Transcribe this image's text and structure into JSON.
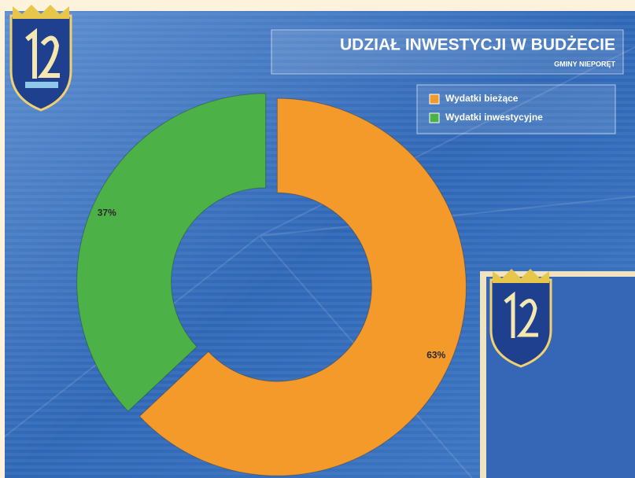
{
  "chart_data": {
    "type": "pie",
    "donut": true,
    "title": "UDZIAŁ INWESTYCJI W BUDŻECIE",
    "subtitle": "GMINY NIEPORĘT",
    "series": [
      {
        "name": "Wydatki bieżące",
        "color": "#f39a2a",
        "values": [
          63
        ],
        "value_labels": [
          "63%"
        ]
      },
      {
        "name": "Wydatki inwestycyjne",
        "color": "#4cb248",
        "values": [
          37
        ],
        "value_labels": [
          "37%"
        ]
      }
    ],
    "legend": "top-right"
  }
}
